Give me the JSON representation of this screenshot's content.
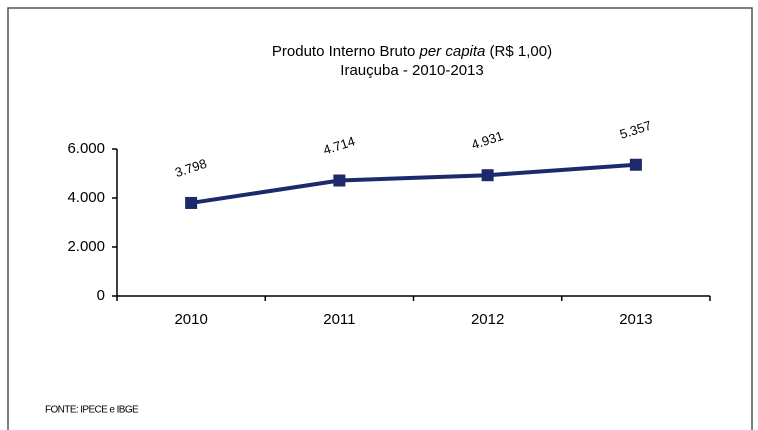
{
  "chart_data": {
    "type": "line",
    "title_parts": [
      "Produto Interno Bruto ",
      "per capita",
      " (R$ 1,00)"
    ],
    "subtitle": "Irauçuba - 2010-2013",
    "source": "FONTE: IPECE e IBGE",
    "categories": [
      "2010",
      "2011",
      "2012",
      "2013"
    ],
    "series": [
      {
        "name": "PIB per capita",
        "color": "#1c2a6b",
        "values": [
          3798,
          4714,
          4931,
          5357
        ],
        "value_labels": [
          "3.798",
          "4.714",
          "4.931",
          "5.357"
        ]
      }
    ],
    "ylim": [
      0,
      6000
    ],
    "yticks": [
      0,
      {
        "value": 2000,
        "label": "2.000"
      },
      {
        "value": 4000,
        "label": "4.000"
      },
      {
        "value": 6000,
        "label": "6.000"
      }
    ],
    "grid": false
  }
}
